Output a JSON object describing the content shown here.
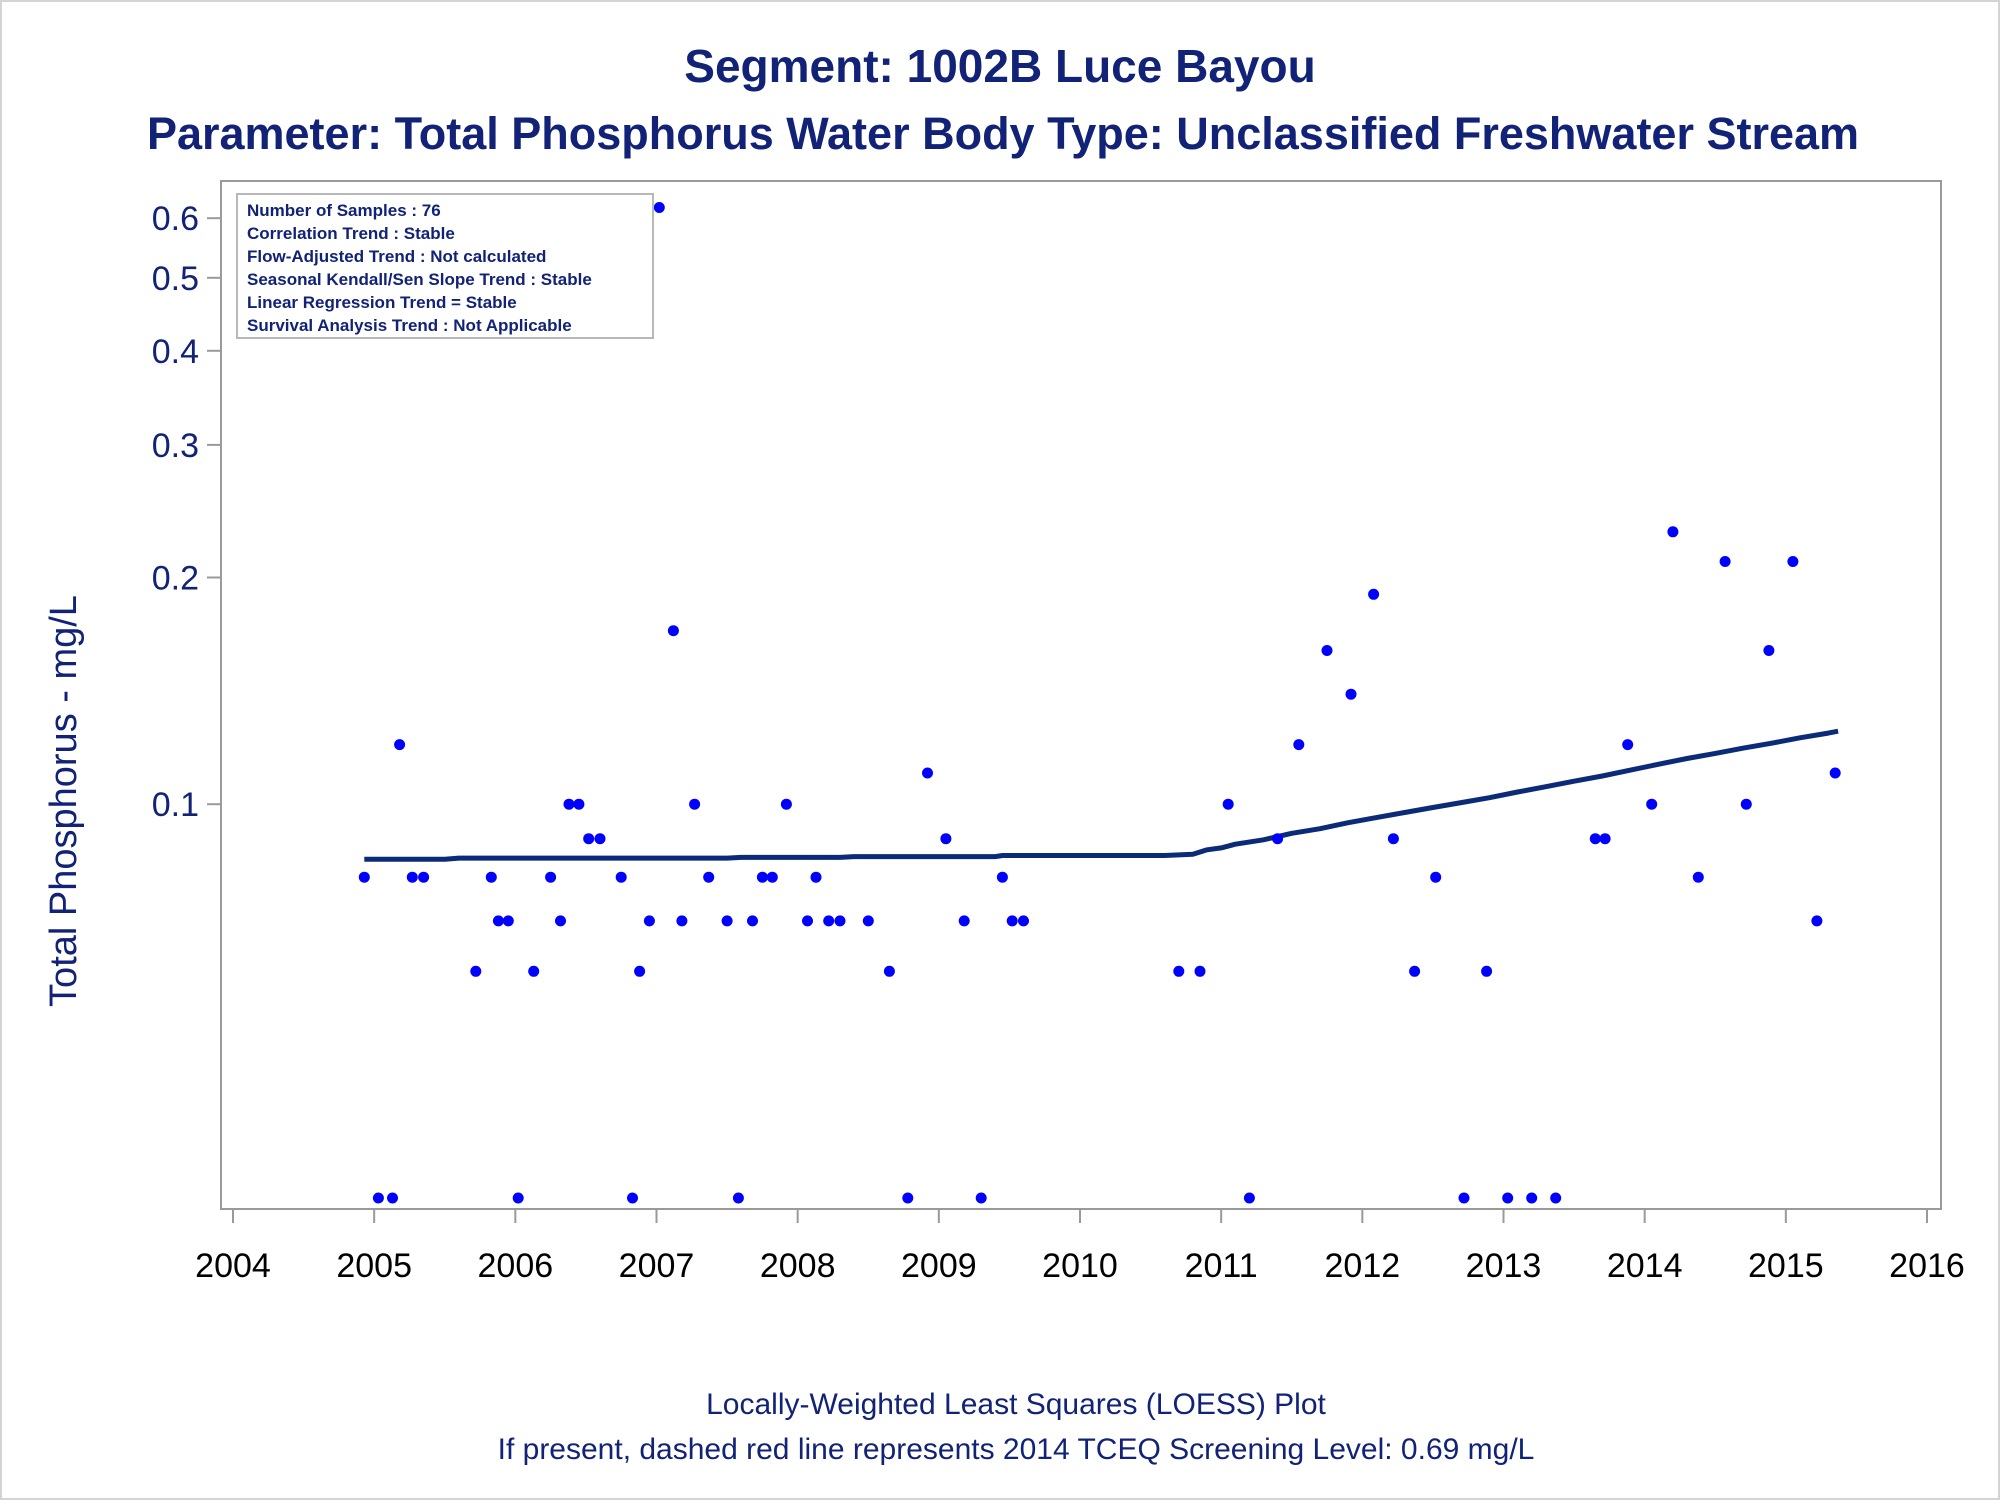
{
  "chart_data": {
    "type": "scatter",
    "title": "Segment: 1002B  Luce Bayou",
    "subtitle": "Parameter: Total Phosphorus   Water Body Type: Unclassified Freshwater Stream",
    "xlabel": "",
    "ylabel": "Total Phosphorus - mg/L",
    "yscale": "log",
    "xlim": [
      2004,
      2016
    ],
    "ylim": [
      0.03,
      0.65
    ],
    "x_ticks": [
      2004,
      2005,
      2006,
      2007,
      2008,
      2009,
      2010,
      2011,
      2012,
      2013,
      2014,
      2015,
      2016
    ],
    "y_ticks": [
      0.1,
      0.2,
      0.3,
      0.4,
      0.5,
      0.6
    ],
    "y_tick_labels": [
      "0.1",
      "0.2",
      "0.3",
      "0.4",
      "0.5",
      "0.6"
    ],
    "grid": false,
    "colors": {
      "points": "#0000ff",
      "loess": "#0b2a78",
      "text": "#112277",
      "frame": "#9a9a9a"
    },
    "stats_box": {
      "placement": "top-left",
      "lines": [
        "Number of Samples : 76",
        "Correlation Trend : Stable",
        "Flow-Adjusted Trend : Not calculated",
        "Seasonal Kendall/Sen Slope Trend : Stable",
        "Linear Regression Trend = Stable",
        "Survival Analysis Trend : Not Applicable"
      ]
    },
    "footnotes": [
      "Locally-Weighted Least Squares (LOESS) Plot",
      "If present, dashed red line represents 2014 TCEQ Screening Level: 0.69 mg/L"
    ],
    "series": [
      {
        "type": "scatter",
        "points": [
          [
            2004.93,
            0.08
          ],
          [
            2005.03,
            0.03
          ],
          [
            2005.13,
            0.03
          ],
          [
            2005.18,
            0.12
          ],
          [
            2005.27,
            0.08
          ],
          [
            2005.35,
            0.08
          ],
          [
            2005.72,
            0.06
          ],
          [
            2005.83,
            0.08
          ],
          [
            2005.88,
            0.07
          ],
          [
            2005.95,
            0.07
          ],
          [
            2006.02,
            0.03
          ],
          [
            2006.13,
            0.06
          ],
          [
            2006.25,
            0.08
          ],
          [
            2006.32,
            0.07
          ],
          [
            2006.38,
            0.1
          ],
          [
            2006.45,
            0.1
          ],
          [
            2006.52,
            0.09
          ],
          [
            2006.6,
            0.09
          ],
          [
            2006.75,
            0.08
          ],
          [
            2006.83,
            0.03
          ],
          [
            2006.88,
            0.06
          ],
          [
            2006.95,
            0.07
          ],
          [
            2007.02,
            0.62
          ],
          [
            2007.12,
            0.17
          ],
          [
            2007.18,
            0.07
          ],
          [
            2007.27,
            0.1
          ],
          [
            2007.37,
            0.08
          ],
          [
            2007.5,
            0.07
          ],
          [
            2007.58,
            0.03
          ],
          [
            2007.68,
            0.07
          ],
          [
            2007.75,
            0.08
          ],
          [
            2007.82,
            0.08
          ],
          [
            2007.92,
            0.1
          ],
          [
            2008.07,
            0.07
          ],
          [
            2008.13,
            0.08
          ],
          [
            2008.22,
            0.07
          ],
          [
            2008.3,
            0.07
          ],
          [
            2008.5,
            0.07
          ],
          [
            2008.65,
            0.06
          ],
          [
            2008.78,
            0.03
          ],
          [
            2008.92,
            0.11
          ],
          [
            2009.05,
            0.09
          ],
          [
            2009.18,
            0.07
          ],
          [
            2009.3,
            0.03
          ],
          [
            2009.45,
            0.08
          ],
          [
            2009.52,
            0.07
          ],
          [
            2009.6,
            0.07
          ],
          [
            2010.7,
            0.06
          ],
          [
            2010.85,
            0.06
          ],
          [
            2011.05,
            0.1
          ],
          [
            2011.2,
            0.03
          ],
          [
            2011.4,
            0.09
          ],
          [
            2011.55,
            0.12
          ],
          [
            2011.75,
            0.16
          ],
          [
            2011.92,
            0.14
          ],
          [
            2012.08,
            0.19
          ],
          [
            2012.22,
            0.09
          ],
          [
            2012.37,
            0.06
          ],
          [
            2012.52,
            0.08
          ],
          [
            2012.72,
            0.03
          ],
          [
            2012.88,
            0.06
          ],
          [
            2013.03,
            0.03
          ],
          [
            2013.2,
            0.03
          ],
          [
            2013.37,
            0.03
          ],
          [
            2013.65,
            0.09
          ],
          [
            2013.72,
            0.09
          ],
          [
            2013.88,
            0.12
          ],
          [
            2014.05,
            0.1
          ],
          [
            2014.2,
            0.23
          ],
          [
            2014.38,
            0.08
          ],
          [
            2014.57,
            0.21
          ],
          [
            2014.72,
            0.1
          ],
          [
            2014.88,
            0.16
          ],
          [
            2015.05,
            0.21
          ],
          [
            2015.22,
            0.07
          ],
          [
            2015.35,
            0.11
          ]
        ]
      },
      {
        "type": "line",
        "points": [
          [
            2004.93,
            0.0845
          ],
          [
            2005.5,
            0.0845
          ],
          [
            2005.6,
            0.0848
          ],
          [
            2006.5,
            0.0848
          ],
          [
            2007.5,
            0.0848
          ],
          [
            2007.6,
            0.085
          ],
          [
            2008.3,
            0.085
          ],
          [
            2008.4,
            0.0852
          ],
          [
            2009.4,
            0.0852
          ],
          [
            2009.45,
            0.0855
          ],
          [
            2010.5,
            0.0855
          ],
          [
            2010.6,
            0.0855
          ],
          [
            2010.8,
            0.0858
          ],
          [
            2010.9,
            0.087
          ],
          [
            2011.0,
            0.0875
          ],
          [
            2011.1,
            0.0885
          ],
          [
            2011.3,
            0.0897
          ],
          [
            2011.5,
            0.0915
          ],
          [
            2011.7,
            0.0928
          ],
          [
            2011.9,
            0.0945
          ],
          [
            2012.1,
            0.096
          ],
          [
            2012.3,
            0.0975
          ],
          [
            2012.5,
            0.099
          ],
          [
            2012.7,
            0.1005
          ],
          [
            2012.9,
            0.102
          ],
          [
            2013.1,
            0.1038
          ],
          [
            2013.3,
            0.1055
          ],
          [
            2013.5,
            0.1073
          ],
          [
            2013.7,
            0.109
          ],
          [
            2013.9,
            0.111
          ],
          [
            2014.1,
            0.113
          ],
          [
            2014.3,
            0.115
          ],
          [
            2014.5,
            0.1168
          ],
          [
            2014.7,
            0.1187
          ],
          [
            2014.9,
            0.1205
          ],
          [
            2015.1,
            0.1225
          ],
          [
            2015.3,
            0.1243
          ],
          [
            2015.37,
            0.125
          ]
        ]
      }
    ]
  }
}
